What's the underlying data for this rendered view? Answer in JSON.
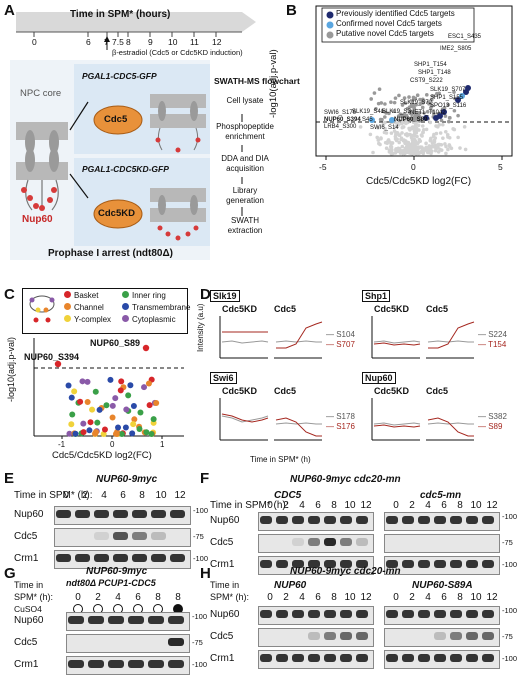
{
  "panels": {
    "A": {
      "letter": "A",
      "timeline_title": "Time in SPM* (hours)",
      "ticks": [
        "0",
        "6",
        "7",
        "7.5",
        "8",
        "9",
        "10",
        "11",
        "12"
      ],
      "induction_note": "β-estradiol (Cdc5 or Cdc5KD induction)",
      "npc_label": "NPC core",
      "nup60_label": "Nup60",
      "construct1": "PGAL1-CDC5-GFP",
      "construct2": "PGAL1-CDC5KD-GFP",
      "cdc5_label": "Cdc5",
      "cdc5kd_label": "Cdc5KD",
      "arrest_label": "Prophase I arrest (ndt80Δ)",
      "flow_title": "SWATH-MS flowchart",
      "flow_steps": [
        "Cell lysate",
        "Phosphopeptide enrichment",
        "DDA and DIA acquisition",
        "Library generation",
        "SWATH extraction"
      ]
    },
    "B": {
      "letter": "B",
      "legend": [
        "Previously identified Cdc5 targets",
        "Confirmed novel Cdc5 targets",
        "Putative novel Cdc5 targets"
      ],
      "ylabel": "-log10(adj.p-val)",
      "xlabel": "Cdc5/Cdc5KD log2(FC)",
      "xticks": [
        "-5",
        "0",
        "5"
      ],
      "labels": [
        "ESC1_S435",
        "IME2_S805",
        "SHP1_T154",
        "SHP1_T148",
        "CST9_S222",
        "SLK19_S707",
        "SHP1_S155",
        "SPO13_S116",
        "SLK19_S72",
        "NET1_T1042",
        "SWI6_S176",
        "SLK19_S41",
        "SLK19_S3",
        "NUP60_S394",
        "NUP60_S89",
        "LRB4_S300",
        "S45",
        "SWI6_S14"
      ],
      "colors": {
        "previous": "#1f2a6e",
        "confirmed": "#5aa6e0",
        "putative": "#999999"
      }
    },
    "C": {
      "letter": "C",
      "legend": [
        "Basket",
        "Channel",
        "Y-complex",
        "Inner ring",
        "Transmembrane",
        "Cytoplasmic"
      ],
      "legend_colors": [
        "#d7262a",
        "#e8852c",
        "#f0d23a",
        "#3aa048",
        "#2a4aa8",
        "#8a5aa8"
      ],
      "ylabel": "-log10(adj.p-val)",
      "xlabel": "Cdc5/Cdc5KD log2(FC)",
      "xticks": [
        "-1",
        "0",
        "1"
      ],
      "yticks": [
        "0",
        "1",
        "2",
        "3"
      ],
      "labels": [
        "NUP60_S89",
        "NUP60_S394"
      ]
    },
    "D": {
      "letter": "D",
      "ylabel": "Intensity (a.u)",
      "xlabel": "Time in SPM* (h)",
      "xticks": [
        "6",
        "8",
        "10",
        "12"
      ],
      "cond_kd": "Cdc5KD",
      "cond_wt": "Cdc5",
      "plots": [
        {
          "protein": "Slk19",
          "s1": "S104",
          "s2": "S707"
        },
        {
          "protein": "Shp1",
          "s1": "S224",
          "s2": "T154"
        },
        {
          "protein": "Swi6",
          "s1": "S178",
          "s2": "S176"
        },
        {
          "protein": "Nup60",
          "s1": "S382",
          "s2": "S89"
        }
      ]
    },
    "E": {
      "letter": "E",
      "title": "NUP60-9myc",
      "time_label": "Time in SPM* (h):",
      "lanes": [
        "0",
        "2",
        "4",
        "6",
        "8",
        "10",
        "12"
      ],
      "rows": [
        "Nup60",
        "Cdc5",
        "Crm1"
      ],
      "mw": [
        "100",
        "75",
        "100"
      ]
    },
    "F": {
      "letter": "F",
      "title": "NUP60-9myc cdc20-mn",
      "group1": "CDC5",
      "group2": "cdc5-mn",
      "time_label": "Time in SPM* (h):",
      "lanes": [
        "0",
        "2",
        "4",
        "6",
        "8",
        "10",
        "12",
        "0",
        "2",
        "4",
        "6",
        "8",
        "10",
        "12"
      ],
      "rows": [
        "Nup60",
        "Cdc5",
        "Crm1"
      ],
      "mw": [
        "100",
        "75",
        "100"
      ]
    },
    "G": {
      "letter": "G",
      "title": "NUP60-9myc",
      "subtitle": "ndt80Δ PCUP1-CDC5",
      "time_label": "SPM* (h):",
      "time_word": "Time in",
      "cuso4": "CuSO4",
      "lanes": [
        "0",
        "2",
        "4",
        "6",
        "8",
        "8"
      ],
      "rows": [
        "Nup60",
        "Cdc5",
        "Crm1"
      ],
      "mw": [
        "100",
        "75",
        "100"
      ]
    },
    "H": {
      "letter": "H",
      "title": "NUP60-9myc cdc20-mn",
      "group1": "NUP60",
      "group2": "NUP60-S89A",
      "time_label": "SPM* (h):",
      "time_word": "Time in",
      "lanes": [
        "0",
        "2",
        "4",
        "6",
        "8",
        "10",
        "12",
        "0",
        "2",
        "4",
        "6",
        "8",
        "10",
        "12"
      ],
      "rows": [
        "Nup60",
        "Cdc5",
        "Crm1"
      ],
      "mw": [
        "100",
        "75",
        "100"
      ]
    }
  }
}
